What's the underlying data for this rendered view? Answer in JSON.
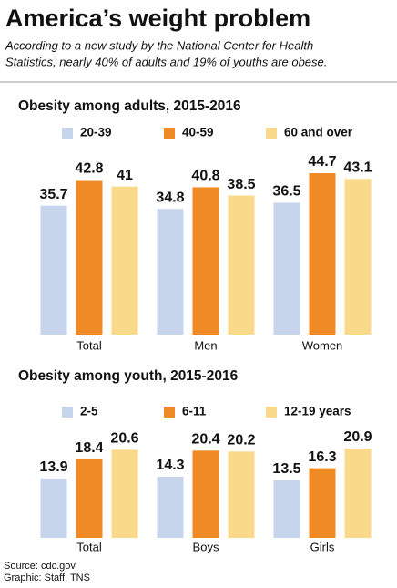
{
  "title": "America’s weight problem",
  "subtitle": [
    "According to a new study by the National Center for Health",
    "Statistics, nearly 40% of adults and 19% of youths are obese."
  ],
  "chart_data": [
    {
      "type": "bar",
      "title": "Obesity among adults, 2015-2016",
      "categories": [
        "Total",
        "Men",
        "Women"
      ],
      "series": [
        {
          "name": "20-39",
          "color": "#c6d4ec",
          "values": [
            35.7,
            34.8,
            36.5
          ]
        },
        {
          "name": "40-59",
          "color": "#f08a24",
          "values": [
            42.8,
            40.8,
            44.7
          ]
        },
        {
          "name": "60 and over",
          "color": "#fbd98b",
          "values": [
            41,
            38.5,
            43.1
          ]
        }
      ]
    },
    {
      "type": "bar",
      "title": "Obesity among youth, 2015-2016",
      "categories": [
        "Total",
        "Boys",
        "Girls"
      ],
      "series": [
        {
          "name": "2-5",
          "color": "#c6d4ec",
          "values": [
            13.9,
            14.3,
            13.5
          ]
        },
        {
          "name": "6-11",
          "color": "#f08a24",
          "values": [
            18.4,
            20.4,
            16.3
          ]
        },
        {
          "name": "12-19 years",
          "color": "#fbd98b",
          "values": [
            20.6,
            20.2,
            20.9
          ]
        }
      ]
    }
  ],
  "source": "Source: cdc.gov",
  "credit": "Graphic: Staff, TNS"
}
